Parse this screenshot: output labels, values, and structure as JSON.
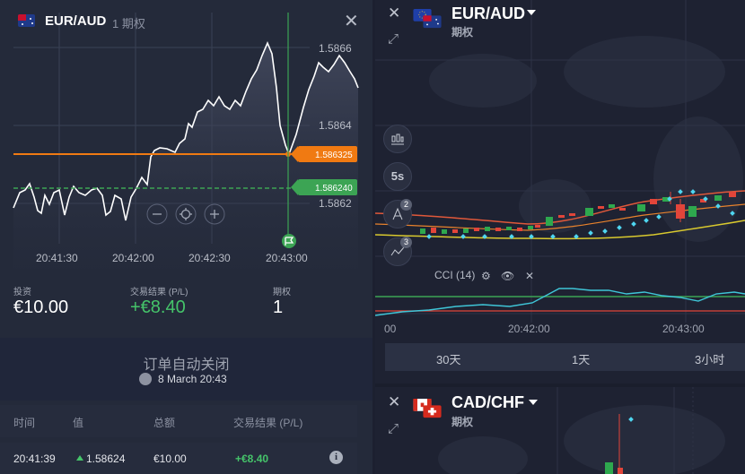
{
  "left_panel": {
    "pair": "EUR/AUD",
    "subtitle": "1 期权",
    "close_glyph": "✕",
    "chart": {
      "price_ticks": [
        "1.5866",
        "1.5864",
        "1.5862"
      ],
      "time_ticks": [
        "20:41:30",
        "20:42:00",
        "20:42:30",
        "20:43:00"
      ],
      "current_price": "1.586325",
      "entry_price": "1.586240",
      "current_color": "#f07a12",
      "entry_color": "#3ca454",
      "zoom_out": "−",
      "zoom_reset": "⊕",
      "zoom_in": "+"
    },
    "stats": {
      "invest_label": "投资",
      "invest_value": "€10.00",
      "result_label": "交易结果 (P/L)",
      "result_value": "+€8.40",
      "options_label": "期权",
      "options_value": "1"
    },
    "auto_close": {
      "title": "订单自动关闭",
      "date": "8 March 20:43"
    },
    "table": {
      "headers": [
        "时间",
        "值",
        "总额",
        "交易结果 (P/L)"
      ],
      "rows": [
        {
          "time": "20:41:39",
          "value": "1.58624",
          "amount": "€10.00",
          "result": "+€8.40"
        }
      ],
      "info_glyph": "i"
    }
  },
  "right_panel": {
    "top_chart": {
      "pair": "EUR/AUD",
      "subtitle": "期权",
      "interval_label": "5s",
      "badge_a": "2",
      "badge_b": "3",
      "indicator": "CCI (14)",
      "time_ticks": [
        "00",
        "20:42:00",
        "20:43:00"
      ],
      "periods": [
        "30天",
        "1天",
        "3小时"
      ]
    },
    "bottom_chart": {
      "pair": "CAD/CHF",
      "subtitle": "期权"
    }
  }
}
